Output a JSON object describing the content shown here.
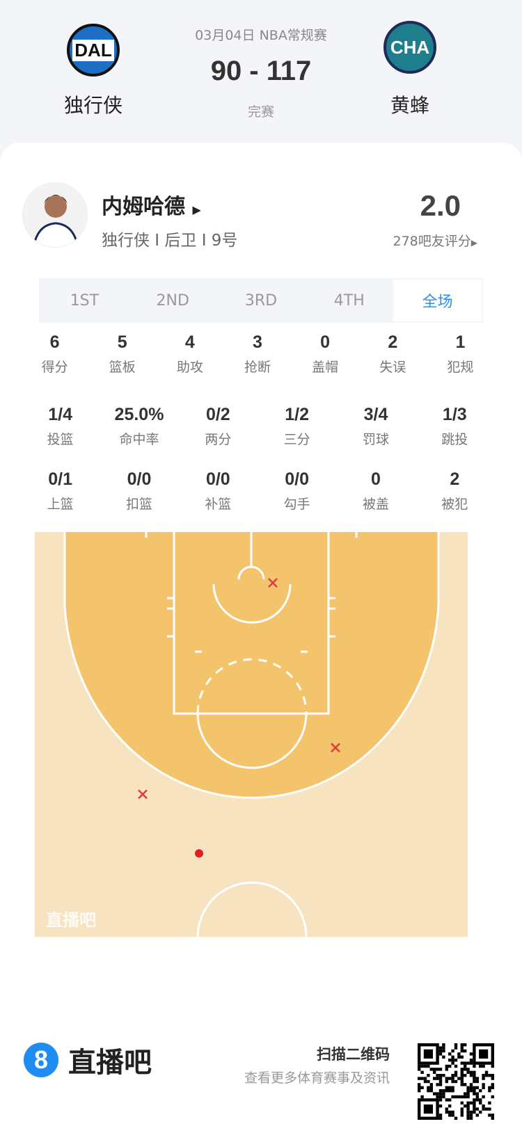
{
  "header": {
    "date_league": "03月04日 NBA常规赛",
    "score": "90 - 117",
    "status": "完赛",
    "home": {
      "abbr": "DAL",
      "name": "独行侠",
      "color": "#1d6fc4"
    },
    "away": {
      "abbr": "CHA",
      "name": "黄蜂",
      "color": "#1f7e8c"
    }
  },
  "player": {
    "name": "内姆哈德",
    "meta": "独行侠 I 后卫 I 9号",
    "rating": "2.0",
    "raters": "278吧友评分"
  },
  "tabs": [
    {
      "label": "1ST"
    },
    {
      "label": "2ND"
    },
    {
      "label": "3RD"
    },
    {
      "label": "4TH"
    },
    {
      "label": "全场",
      "active": true
    }
  ],
  "stats_row1": [
    {
      "v": "6",
      "l": "得分"
    },
    {
      "v": "5",
      "l": "篮板"
    },
    {
      "v": "4",
      "l": "助攻"
    },
    {
      "v": "3",
      "l": "抢断"
    },
    {
      "v": "0",
      "l": "盖帽"
    },
    {
      "v": "2",
      "l": "失误"
    },
    {
      "v": "1",
      "l": "犯规"
    }
  ],
  "stats_row2": [
    {
      "v": "1/4",
      "l": "投篮"
    },
    {
      "v": "25.0%",
      "l": "命中率"
    },
    {
      "v": "0/2",
      "l": "两分"
    },
    {
      "v": "1/2",
      "l": "三分"
    },
    {
      "v": "3/4",
      "l": "罚球"
    },
    {
      "v": "1/3",
      "l": "跳投"
    }
  ],
  "stats_row3": [
    {
      "v": "0/1",
      "l": "上篮"
    },
    {
      "v": "0/0",
      "l": "扣篮"
    },
    {
      "v": "0/0",
      "l": "补篮"
    },
    {
      "v": "0/0",
      "l": "勾手"
    },
    {
      "v": "0",
      "l": "被盖"
    },
    {
      "v": "2",
      "l": "被犯"
    }
  ],
  "court": {
    "watermark": "直播吧",
    "shots": [
      {
        "result": "miss"
      },
      {
        "result": "miss"
      },
      {
        "result": "miss"
      },
      {
        "result": "made"
      }
    ],
    "colors": {
      "miss": "#e03a3a",
      "made": "#e02020"
    }
  },
  "footer": {
    "brand": "直播吧",
    "scan": "扫描二维码",
    "sub": "查看更多体育赛事及资讯"
  }
}
